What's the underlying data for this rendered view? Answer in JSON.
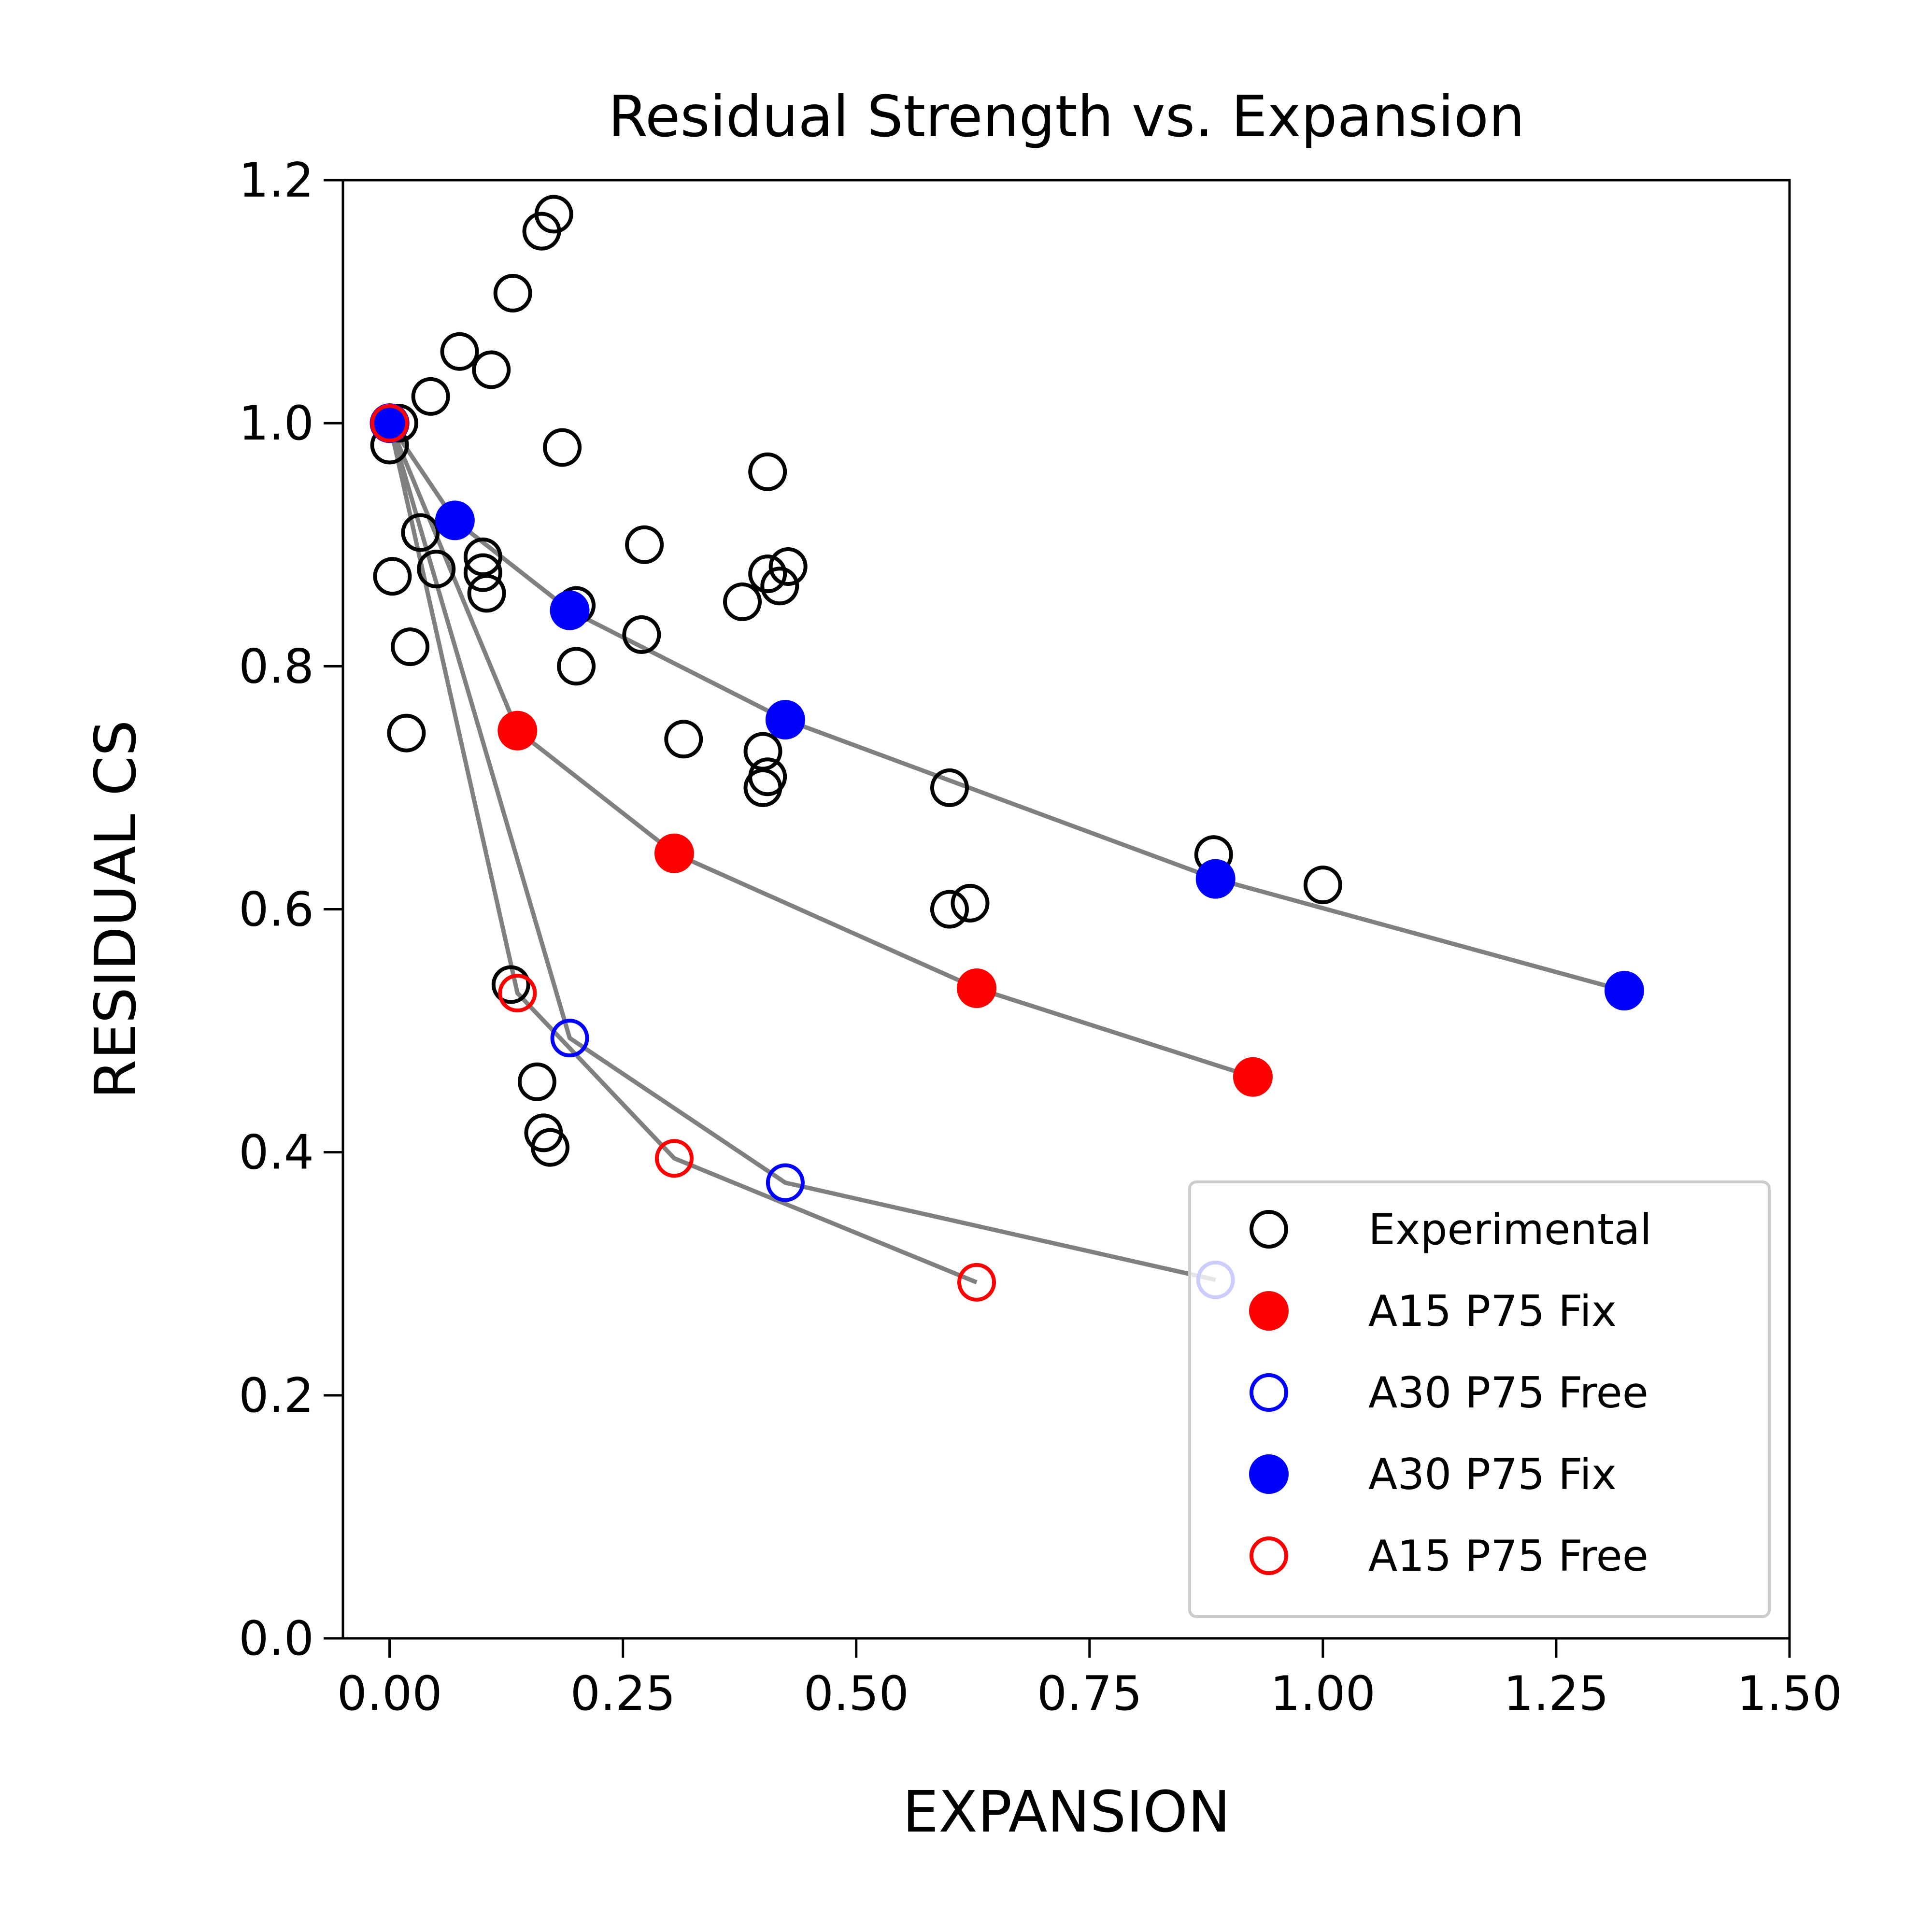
{
  "chart_data": {
    "type": "scatter",
    "title": "Residual Strength vs. Expansion",
    "xlabel": "EXPANSION",
    "ylabel": "RESIDUAL CS",
    "xlim": [
      -0.05,
      1.5
    ],
    "ylim": [
      0.0,
      1.2
    ],
    "xticks": [
      "0.00",
      "0.25",
      "0.50",
      "0.75",
      "1.00",
      "1.25",
      "1.50"
    ],
    "yticks": [
      "0.0",
      "0.2",
      "0.4",
      "0.6",
      "0.8",
      "1.0",
      "1.2"
    ],
    "grid": false,
    "legend_position": "lower-right",
    "legend": [
      "Experimental",
      "A15 P75 Fix",
      "A30 P75 Free",
      "A30 P75 Fix",
      "A15 P75 Free"
    ],
    "series": [
      {
        "name": "Experimental",
        "marker": "open-circle",
        "color": "#000000",
        "line": false,
        "points": [
          [
            0.0,
            0.982
          ],
          [
            0.003,
            0.874
          ],
          [
            0.01,
            1.0
          ],
          [
            0.018,
            0.745
          ],
          [
            0.022,
            0.816
          ],
          [
            0.033,
            0.91
          ],
          [
            0.044,
            1.022
          ],
          [
            0.05,
            0.88
          ],
          [
            0.075,
            1.059
          ],
          [
            0.1,
            0.89
          ],
          [
            0.1,
            0.877
          ],
          [
            0.104,
            0.86
          ],
          [
            0.109,
            1.044
          ],
          [
            0.132,
            1.107
          ],
          [
            0.13,
            0.538
          ],
          [
            0.158,
            0.458
          ],
          [
            0.163,
            1.158
          ],
          [
            0.176,
            1.172
          ],
          [
            0.185,
            0.98
          ],
          [
            0.165,
            0.416
          ],
          [
            0.172,
            0.404
          ],
          [
            0.2,
            0.85
          ],
          [
            0.2,
            0.8
          ],
          [
            0.27,
            0.826
          ],
          [
            0.273,
            0.9
          ],
          [
            0.315,
            0.74
          ],
          [
            0.378,
            0.853
          ],
          [
            0.4,
            0.73
          ],
          [
            0.4,
            0.7
          ],
          [
            0.405,
            0.709
          ],
          [
            0.405,
            0.96
          ],
          [
            0.405,
            0.876
          ],
          [
            0.418,
            0.866
          ],
          [
            0.427,
            0.882
          ],
          [
            0.6,
            0.7
          ],
          [
            0.6,
            0.6
          ],
          [
            0.622,
            0.605
          ],
          [
            0.883,
            0.645
          ],
          [
            1.0,
            0.62
          ]
        ]
      },
      {
        "name": "A15 P75 Fix",
        "marker": "filled-circle",
        "color": "#ff0000",
        "line": true,
        "points": [
          [
            0.0,
            1.0
          ],
          [
            0.137,
            0.747
          ],
          [
            0.305,
            0.646
          ],
          [
            0.629,
            0.535
          ],
          [
            0.925,
            0.462
          ]
        ]
      },
      {
        "name": "A30 P75 Free",
        "marker": "open-circle",
        "color": "#0000ff",
        "line": true,
        "points": [
          [
            0.0,
            1.0
          ],
          [
            0.193,
            0.494
          ],
          [
            0.424,
            0.375
          ],
          [
            0.885,
            0.295
          ]
        ]
      },
      {
        "name": "A30 P75 Fix",
        "marker": "filled-circle",
        "color": "#0000ff",
        "line": true,
        "points": [
          [
            0.0,
            1.0
          ],
          [
            0.07,
            0.92
          ],
          [
            0.193,
            0.846
          ],
          [
            0.424,
            0.756
          ],
          [
            0.885,
            0.625
          ],
          [
            1.323,
            0.533
          ]
        ]
      },
      {
        "name": "A15 P75 Free",
        "marker": "open-circle",
        "color": "#ff0000",
        "line": true,
        "points": [
          [
            0.0,
            1.0
          ],
          [
            0.137,
            0.531
          ],
          [
            0.305,
            0.395
          ],
          [
            0.629,
            0.293
          ]
        ]
      }
    ],
    "line_color": "#808080"
  }
}
